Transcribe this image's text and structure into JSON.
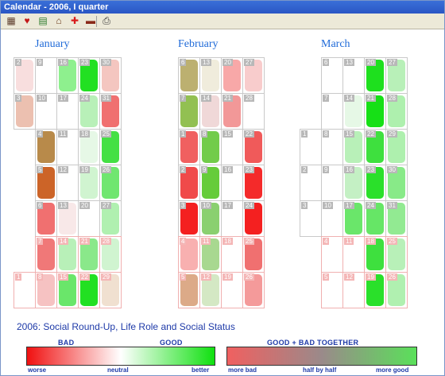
{
  "window": {
    "title": "Calendar - 2006, I quarter"
  },
  "toolbar": {
    "buttons": [
      {
        "name": "calendar-grid-icon",
        "glyph": "▦",
        "color": "#5a3a2a"
      },
      {
        "name": "heart-icon",
        "glyph": "♥",
        "color": "#c21818"
      },
      {
        "name": "chart-icon",
        "glyph": "▤",
        "color": "#2a7a2a"
      },
      {
        "name": "home-icon",
        "glyph": "⌂",
        "color": "#6a3a1a"
      },
      {
        "name": "cross-icon",
        "glyph": "✚",
        "color": "#d81c1c"
      },
      {
        "name": "briefcase-icon",
        "glyph": "▬",
        "color": "#8a2a1a"
      },
      {
        "name": "printer-icon",
        "glyph": "⎙",
        "color": "#333333"
      }
    ]
  },
  "chart_title": "2006: Social Round-Up, Life Role and Social Status",
  "legend": {
    "left_header_bad": "BAD",
    "left_header_good": "GOOD",
    "right_header": "GOOD + BAD TOGETHER",
    "left_scale": [
      "worse",
      "neutral",
      "better"
    ],
    "right_scale": [
      "more bad",
      "half by half",
      "more good"
    ]
  },
  "months": [
    {
      "name": "January",
      "weeks": [
        [
          {
            "d": 2,
            "c": "#f8dede"
          },
          {
            "d": 9,
            "c": ""
          },
          {
            "d": 16,
            "c": "#8ef08e"
          },
          {
            "d": 23,
            "c": "#22e022"
          },
          {
            "d": 30,
            "c": "#f4c6c0"
          }
        ],
        [
          {
            "d": 3,
            "c": "#ecc0b0"
          },
          {
            "d": 10,
            "c": ""
          },
          {
            "d": 17,
            "c": ""
          },
          {
            "d": 24,
            "c": "#b8f0b8"
          },
          {
            "d": 31,
            "c": "#f07070"
          }
        ],
        [
          {
            "d": 4,
            "c": "#b88a4a"
          },
          {
            "d": 11,
            "c": ""
          },
          {
            "d": 18,
            "c": "#e6f8e6"
          },
          {
            "d": 25,
            "c": "#44e044"
          }
        ],
        [
          {
            "d": 5,
            "c": "#cc6428"
          },
          {
            "d": 12,
            "c": ""
          },
          {
            "d": 19,
            "c": "#d0f4d0"
          },
          {
            "d": 26,
            "c": "#70e670"
          }
        ],
        [
          {
            "d": 6,
            "c": "#f07070"
          },
          {
            "d": 13,
            "c": "#f8e8e8"
          },
          {
            "d": 20,
            "c": ""
          },
          {
            "d": 27,
            "c": "#b0f0b0"
          }
        ],
        [
          {
            "d": 7,
            "c": "#f07878",
            "we": true
          },
          {
            "d": 14,
            "c": "#b8f0b8",
            "we": true
          },
          {
            "d": 21,
            "c": "#8ae88a",
            "we": true
          },
          {
            "d": 28,
            "c": "#d0f4d0",
            "we": true
          }
        ],
        [
          {
            "d": 1,
            "c": "",
            "we": true
          },
          {
            "d": 8,
            "c": "#f6c2c2",
            "we": true
          },
          {
            "d": 15,
            "c": "#6ae66a",
            "we": true
          },
          {
            "d": 22,
            "c": "#22e022",
            "we": true
          },
          {
            "d": 29,
            "c": "#f0e0d0",
            "we": true
          }
        ]
      ]
    },
    {
      "name": "February",
      "weeks": [
        [
          {
            "d": 6,
            "c": "#bcb070"
          },
          {
            "d": 13,
            "c": "#f0ecdc"
          },
          {
            "d": 20,
            "c": "#f8a8a8"
          },
          {
            "d": 27,
            "c": "#f8cccc"
          }
        ],
        [
          {
            "d": 7,
            "c": "#92c052"
          },
          {
            "d": 14,
            "c": "#f0d8d8"
          },
          {
            "d": 21,
            "c": "#f29898"
          },
          {
            "d": 28,
            "c": ""
          }
        ],
        [
          {
            "d": 1,
            "c": "#f06060"
          },
          {
            "d": 8,
            "c": "#72cc4a"
          },
          {
            "d": 15,
            "c": ""
          },
          {
            "d": 22,
            "c": "#f05a5a"
          }
        ],
        [
          {
            "d": 2,
            "c": "#f04a4a"
          },
          {
            "d": 9,
            "c": "#66cc3a"
          },
          {
            "d": 16,
            "c": ""
          },
          {
            "d": 23,
            "c": "#f42a2a"
          }
        ],
        [
          {
            "d": 3,
            "c": "#f42020"
          },
          {
            "d": 10,
            "c": "#8ad070"
          },
          {
            "d": 17,
            "c": ""
          },
          {
            "d": 24,
            "c": "#f42020"
          }
        ],
        [
          {
            "d": 4,
            "c": "#f8b0b0",
            "we": true
          },
          {
            "d": 11,
            "c": "#a8d890",
            "we": true
          },
          {
            "d": 18,
            "c": "",
            "we": true
          },
          {
            "d": 25,
            "c": "#f07070",
            "we": true
          }
        ],
        [
          {
            "d": 5,
            "c": "#dcaa88",
            "we": true
          },
          {
            "d": 12,
            "c": "#d4e8c4",
            "we": true
          },
          {
            "d": 19,
            "c": "",
            "we": true
          },
          {
            "d": 26,
            "c": "#f49a9a",
            "we": true
          }
        ]
      ]
    },
    {
      "name": "March",
      "weeks": [
        [
          {
            "d": 6,
            "c": ""
          },
          {
            "d": 13,
            "c": ""
          },
          {
            "d": 20,
            "c": "#1ee01e"
          },
          {
            "d": 27,
            "c": "#b8f0b8"
          }
        ],
        [
          {
            "d": 7,
            "c": ""
          },
          {
            "d": 14,
            "c": "#e6f8e6"
          },
          {
            "d": 21,
            "c": "#16e016"
          },
          {
            "d": 28,
            "c": "#aef0ae"
          }
        ],
        [
          {
            "d": 1,
            "c": ""
          },
          {
            "d": 8,
            "c": ""
          },
          {
            "d": 15,
            "c": "#b8f0b8"
          },
          {
            "d": 22,
            "c": "#3ee03e"
          },
          {
            "d": 29,
            "c": "#aef0ae"
          }
        ],
        [
          {
            "d": 2,
            "c": ""
          },
          {
            "d": 9,
            "c": ""
          },
          {
            "d": 16,
            "c": "#c4f0c4"
          },
          {
            "d": 23,
            "c": "#2ae02a"
          },
          {
            "d": 30,
            "c": "#88ea88"
          }
        ],
        [
          {
            "d": 3,
            "c": ""
          },
          {
            "d": 10,
            "c": ""
          },
          {
            "d": 17,
            "c": "#6ae66a"
          },
          {
            "d": 24,
            "c": "#66e666"
          },
          {
            "d": 31,
            "c": "#92ea92"
          }
        ],
        [
          {
            "d": 4,
            "c": "",
            "we": true
          },
          {
            "d": 11,
            "c": "",
            "we": true
          },
          {
            "d": 18,
            "c": "#3ee03e",
            "we": true
          },
          {
            "d": 25,
            "c": "#b8f0b8",
            "we": true
          }
        ],
        [
          {
            "d": 5,
            "c": "",
            "we": true
          },
          {
            "d": 12,
            "c": "",
            "we": true
          },
          {
            "d": 19,
            "c": "#2ae02a",
            "we": true
          },
          {
            "d": 26,
            "c": "#b0f0b0",
            "we": true
          }
        ]
      ]
    }
  ]
}
